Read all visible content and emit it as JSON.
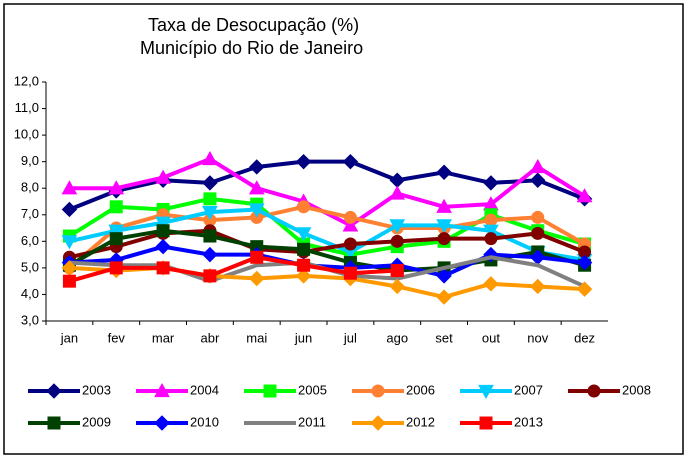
{
  "chart_data": {
    "type": "line",
    "title": "Taxa de Desocupação (%)",
    "subtitle": "Município do Rio de Janeiro",
    "categories": [
      "jan",
      "fev",
      "mar",
      "abr",
      "mai",
      "jun",
      "jul",
      "ago",
      "set",
      "out",
      "nov",
      "dez"
    ],
    "ylim": [
      3,
      12
    ],
    "yticks": [
      {
        "value": 3,
        "label": "3,0"
      },
      {
        "value": 4,
        "label": "4,0"
      },
      {
        "value": 5,
        "label": "5,0"
      },
      {
        "value": 6,
        "label": "6,0"
      },
      {
        "value": 7,
        "label": "7,0"
      },
      {
        "value": 8,
        "label": "8,0"
      },
      {
        "value": 9,
        "label": "9,0"
      },
      {
        "value": 10,
        "label": "10,0"
      },
      {
        "value": 11,
        "label": "11,0"
      },
      {
        "value": 12,
        "label": "12,0"
      }
    ],
    "grid": false,
    "legend": "bottom",
    "series": [
      {
        "name": "2003",
        "color": "#000080",
        "marker": "diamond",
        "values": [
          7.2,
          7.9,
          8.3,
          8.2,
          8.8,
          9.0,
          9.0,
          8.3,
          8.6,
          8.2,
          8.3,
          7.6
        ]
      },
      {
        "name": "2004",
        "color": "#FF00FF",
        "marker": "triangle",
        "values": [
          8.0,
          8.0,
          8.4,
          9.1,
          8.0,
          7.5,
          6.6,
          7.8,
          7.3,
          7.4,
          8.8,
          7.7
        ]
      },
      {
        "name": "2005",
        "color": "#00FF00",
        "marker": "square",
        "values": [
          6.2,
          7.3,
          7.2,
          7.6,
          7.4,
          5.9,
          5.5,
          5.8,
          6.0,
          7.0,
          6.4,
          5.9
        ]
      },
      {
        "name": "2006",
        "color": "#FF8033",
        "marker": "circle",
        "values": [
          5.0,
          6.5,
          7.0,
          6.8,
          6.9,
          7.3,
          6.9,
          6.5,
          6.5,
          6.8,
          6.9,
          5.9
        ]
      },
      {
        "name": "2007",
        "color": "#00CCFF",
        "marker": "triangle-down",
        "values": [
          6.0,
          6.4,
          6.7,
          7.1,
          7.2,
          6.3,
          5.6,
          6.6,
          6.6,
          6.4,
          5.6,
          5.3
        ]
      },
      {
        "name": "2008",
        "color": "#800000",
        "marker": "circle",
        "values": [
          5.4,
          5.8,
          6.3,
          6.4,
          5.7,
          5.6,
          5.9,
          6.0,
          6.1,
          6.1,
          6.3,
          5.6
        ]
      },
      {
        "name": "2009",
        "color": "#004000",
        "marker": "square",
        "values": [
          5.1,
          6.1,
          6.4,
          6.2,
          5.8,
          5.7,
          5.2,
          4.9,
          5.0,
          5.3,
          5.6,
          5.1
        ]
      },
      {
        "name": "2010",
        "color": "#0000FF",
        "marker": "diamond",
        "values": [
          5.2,
          5.3,
          5.8,
          5.5,
          5.5,
          5.1,
          5.0,
          5.1,
          4.7,
          5.5,
          5.4,
          5.2
        ]
      },
      {
        "name": "2011",
        "color": "#808080",
        "marker": "none",
        "values": [
          5.2,
          5.1,
          5.1,
          4.5,
          5.1,
          5.2,
          4.7,
          4.6,
          5.0,
          5.4,
          5.1,
          4.3
        ]
      },
      {
        "name": "2012",
        "color": "#FF9900",
        "marker": "diamond",
        "values": [
          5.0,
          4.9,
          5.0,
          4.7,
          4.6,
          4.7,
          4.6,
          4.3,
          3.9,
          4.4,
          4.3,
          4.2
        ]
      },
      {
        "name": "2013",
        "color": "#FF0000",
        "marker": "square",
        "values": [
          4.5,
          5.0,
          5.0,
          4.7,
          5.4,
          5.1,
          4.8,
          4.9,
          null,
          null,
          null,
          null
        ]
      }
    ]
  }
}
